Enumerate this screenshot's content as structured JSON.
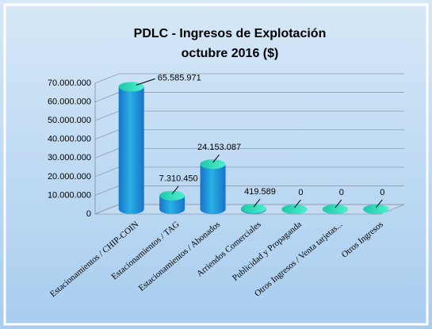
{
  "chart_data": {
    "type": "bar3d",
    "title": "PDLC - Ingresos de Explotación",
    "subtitle": "octubre 2016 ($)",
    "categories": [
      "Estacionamientos / CHIP-COIN",
      "Estacionamientos / TAG",
      "Estacionamientos / Abonados",
      "Arriendos Comerciales",
      "Publicidad y Propaganda",
      "Otros Ingresos / Venta tarjetas...",
      "Otros Ingresos"
    ],
    "values": [
      65585971,
      7310450,
      24153087,
      419589,
      0,
      0,
      0
    ],
    "value_labels": [
      "65.585.971",
      "7.310.450",
      "24.153.087",
      "419.589",
      "0",
      "0",
      "0"
    ],
    "color": "#1673c9",
    "ylim": [
      0,
      70000000
    ],
    "yticks": [
      0,
      {
        "value": 10000000,
        "label": "10.000.000"
      },
      {
        "value": 20000000,
        "label": "20.000.000"
      },
      {
        "value": 30000000,
        "label": "30.000.000"
      },
      {
        "value": 40000000,
        "label": "40.000.000"
      },
      {
        "value": 50000000,
        "label": "50.000.000"
      },
      {
        "value": 60000000,
        "label": "60.000.000"
      },
      {
        "value": 70000000,
        "label": "70.000.000"
      }
    ],
    "grid": true
  }
}
